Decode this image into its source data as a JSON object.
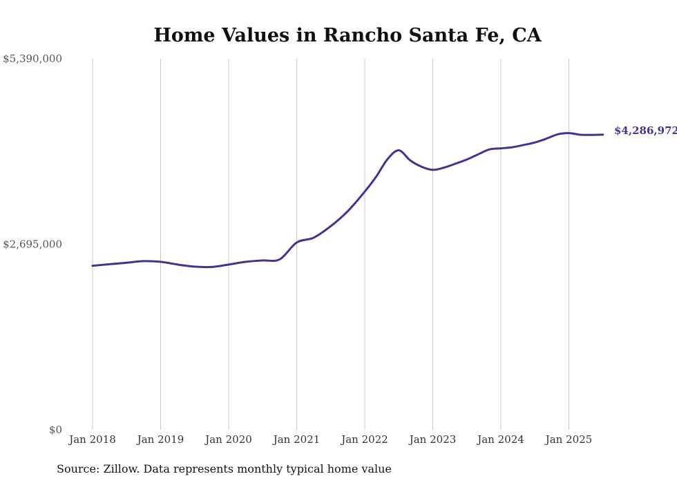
{
  "chart_data": {
    "type": "line",
    "title": "Home Values in Rancho Santa Fe, CA",
    "source": "Source: Zillow. Data represents monthly typical home value",
    "ylim": [
      0,
      5390000
    ],
    "y_ticks": [
      {
        "value": 0,
        "label": "$0"
      },
      {
        "value": 2695000,
        "label": "$2,695,000"
      },
      {
        "value": 5390000,
        "label": "$5,390,000"
      }
    ],
    "x_ticks": [
      {
        "value": "2018-01",
        "label": "Jan 2018"
      },
      {
        "value": "2019-01",
        "label": "Jan 2019"
      },
      {
        "value": "2020-01",
        "label": "Jan 2020"
      },
      {
        "value": "2021-01",
        "label": "Jan 2021"
      },
      {
        "value": "2022-01",
        "label": "Jan 2022"
      },
      {
        "value": "2023-01",
        "label": "Jan 2023"
      },
      {
        "value": "2024-01",
        "label": "Jan 2024"
      },
      {
        "value": "2025-01",
        "label": "Jan 2025"
      }
    ],
    "end_label": "$4,286,972",
    "grid": "vertical",
    "colors": {
      "series": "#3d3592"
    },
    "series": [
      {
        "x": [
          "2018-01",
          "2018-04",
          "2018-07",
          "2018-10",
          "2019-01",
          "2019-04",
          "2019-07",
          "2019-10",
          "2020-01",
          "2020-04",
          "2020-07",
          "2020-10",
          "2021-01",
          "2021-04",
          "2021-07",
          "2021-10",
          "2022-01",
          "2022-03",
          "2022-05",
          "2022-07",
          "2022-09",
          "2022-11",
          "2023-01",
          "2023-03",
          "2023-05",
          "2023-07",
          "2023-09",
          "2023-11",
          "2024-01",
          "2024-03",
          "2024-05",
          "2024-07",
          "2024-09",
          "2024-11",
          "2025-01",
          "2025-03",
          "2025-05",
          "2025-07"
        ],
        "values": [
          2383000,
          2405000,
          2427000,
          2450000,
          2440000,
          2400000,
          2370000,
          2365000,
          2400000,
          2440000,
          2460000,
          2476000,
          2720000,
          2790000,
          2958000,
          3175000,
          3460000,
          3675000,
          3930000,
          4060000,
          3915000,
          3822000,
          3776000,
          3809000,
          3865000,
          3926000,
          4001000,
          4073000,
          4088000,
          4104000,
          4137000,
          4173000,
          4228000,
          4292000,
          4310000,
          4286000,
          4283000,
          4287000
        ]
      }
    ]
  }
}
